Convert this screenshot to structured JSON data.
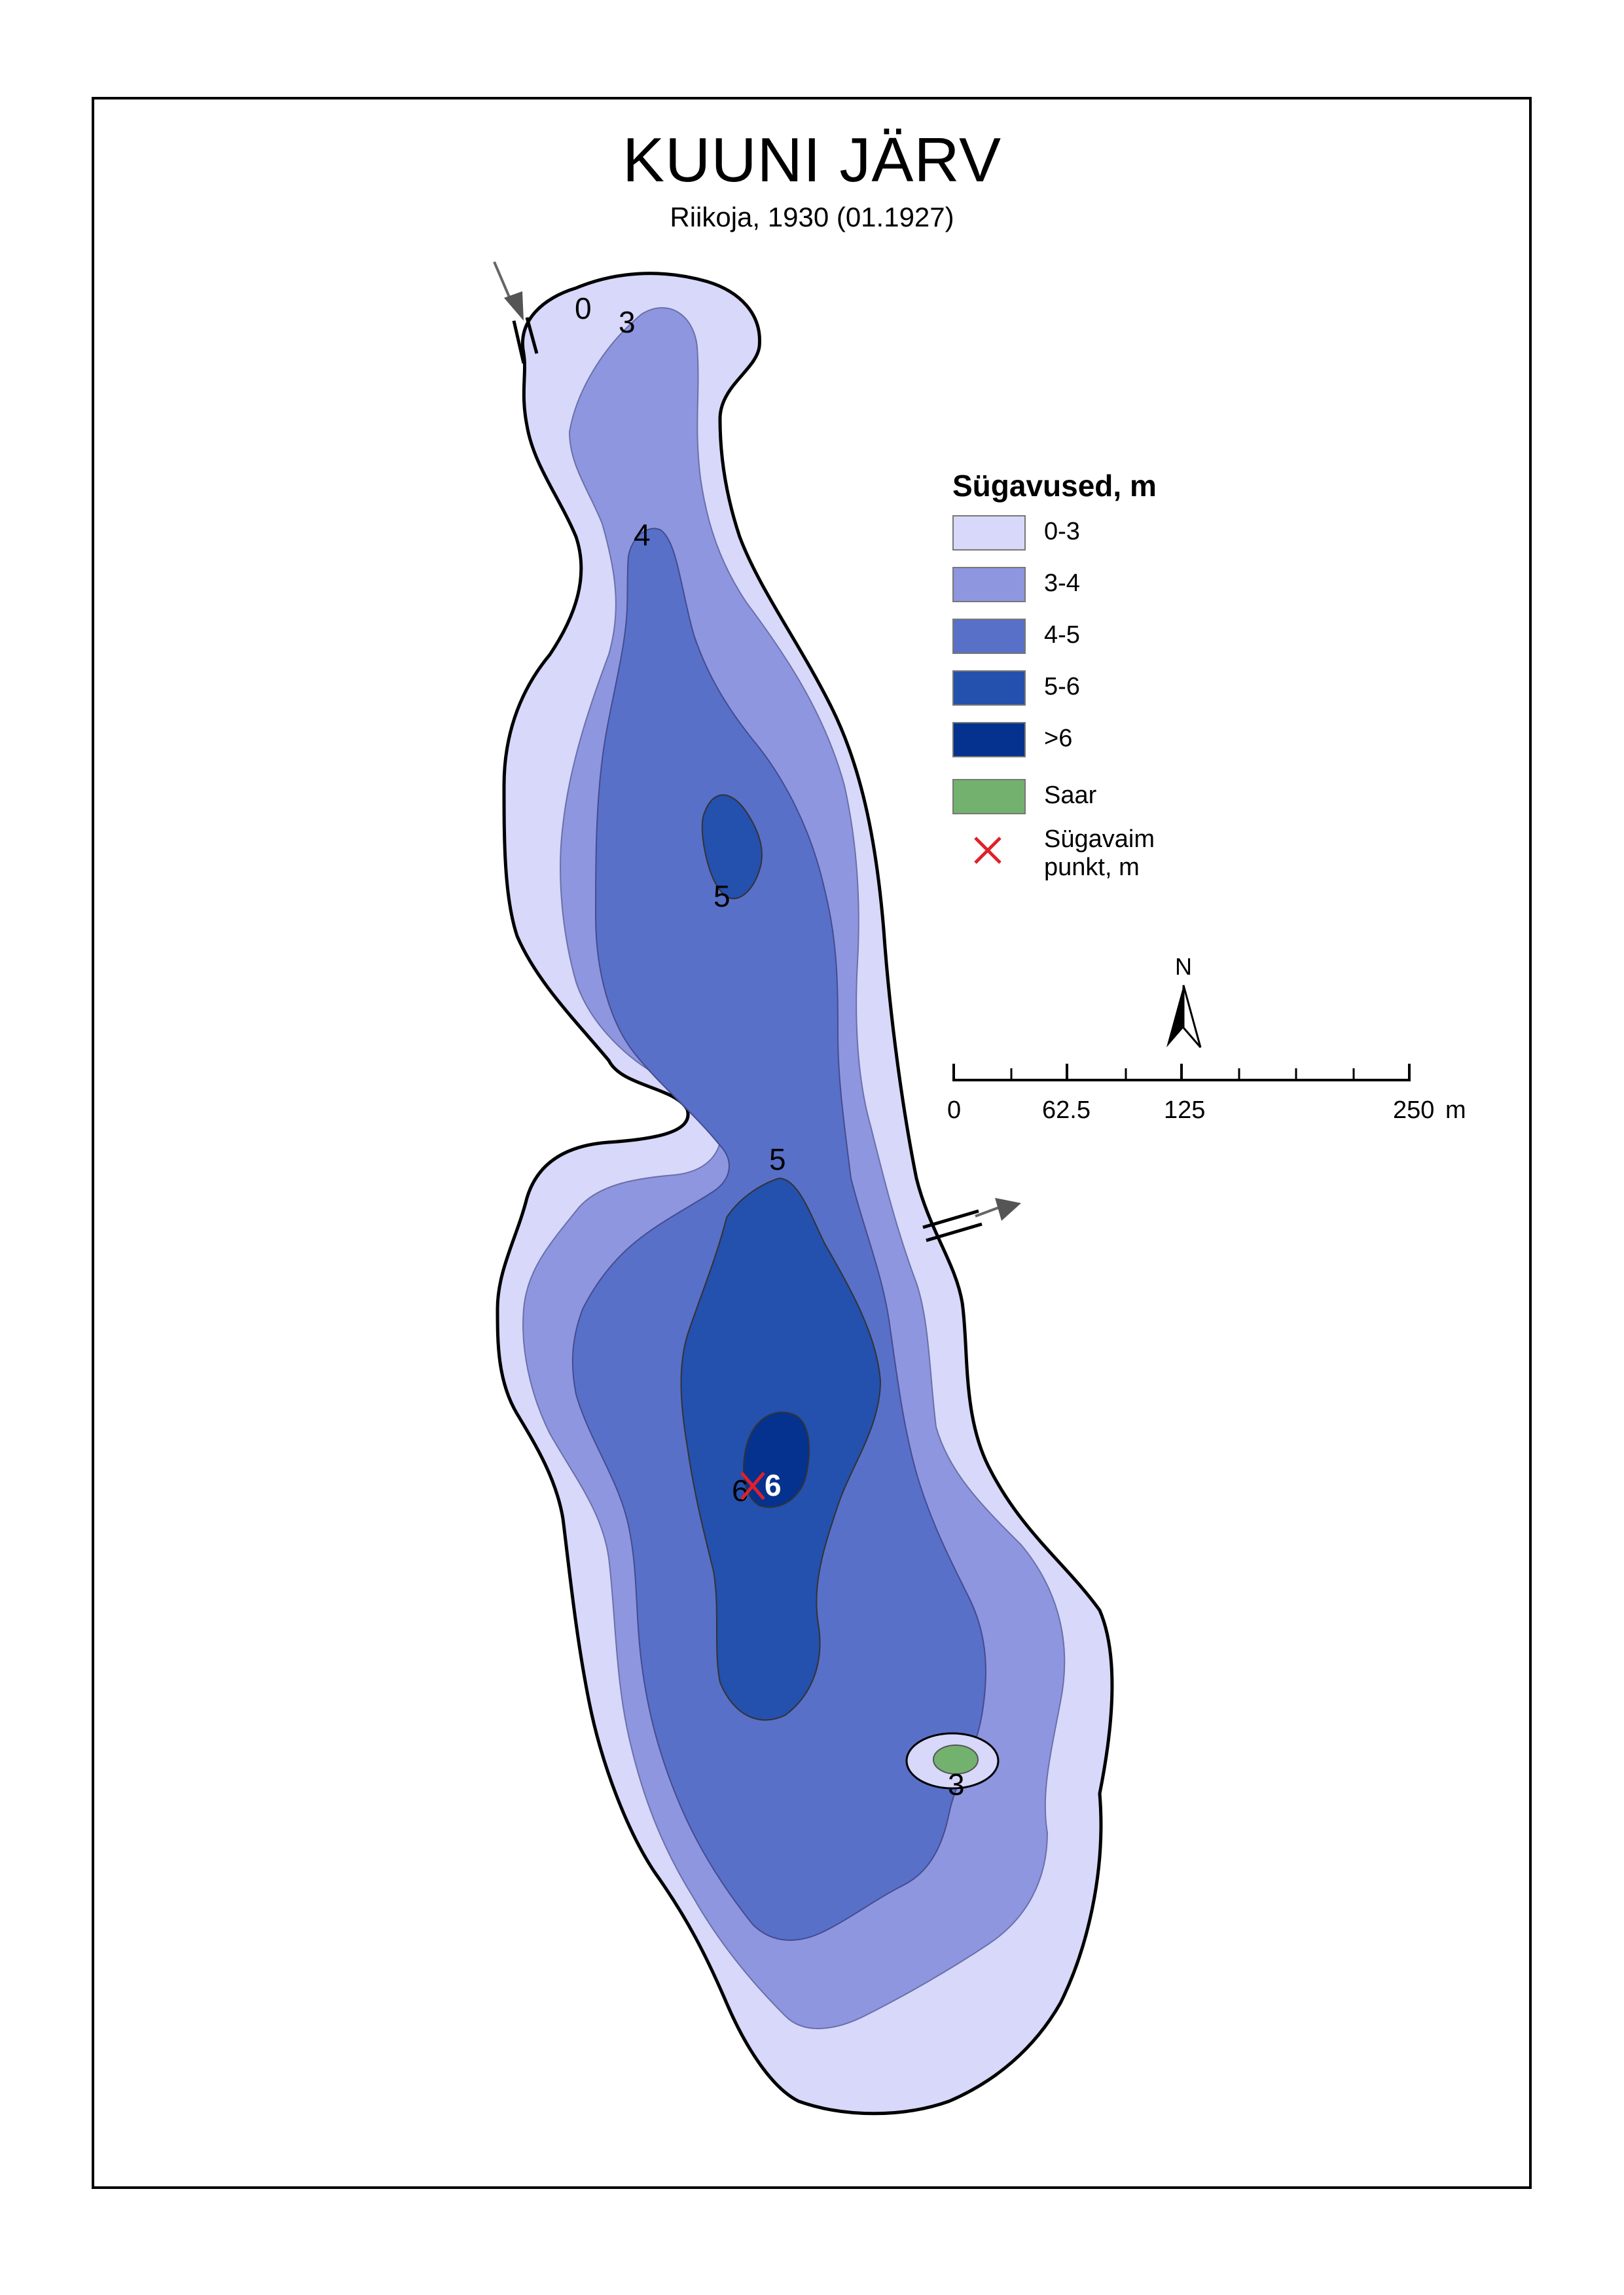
{
  "title": "KUUNI JÄRV",
  "subtitle": "Riikoja, 1930 (01.1927)",
  "legend": {
    "title": "Sügavused, m",
    "items": [
      {
        "label": "0-3",
        "color": "#d7d8fa"
      },
      {
        "label": "3-4",
        "color": "#8e96e0"
      },
      {
        "label": "4-5",
        "color": "#5870c8"
      },
      {
        "label": "5-6",
        "color": "#2450ae"
      },
      {
        "label": ">6",
        "color": "#04328e"
      },
      {
        "label": "Saar",
        "color": "#72b26e"
      },
      {
        "label": "Sügavaim punkt, m",
        "color": "#e0202a"
      }
    ]
  },
  "north": {
    "label": "N"
  },
  "scale": {
    "ticks": [
      "0",
      "62.5",
      "125",
      "250"
    ],
    "unit": "m"
  },
  "depth_labels": {
    "shore": "0",
    "north_3": "3",
    "north_4": "4",
    "mid_5": "5",
    "center_5": "5",
    "deep_6": "6",
    "deepest_value": "6",
    "island_3": "3"
  }
}
